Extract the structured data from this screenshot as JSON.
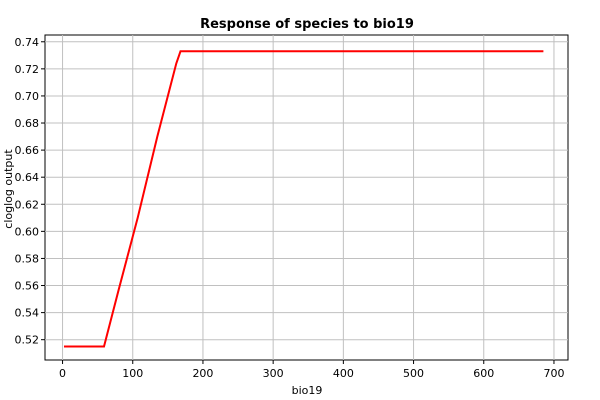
{
  "chart_data": {
    "type": "line",
    "title": "Response of species to bio19",
    "xlabel": "bio19",
    "ylabel": "cloglog output",
    "xlim": [
      -25,
      720
    ],
    "ylim": [
      0.505,
      0.745
    ],
    "xticks": [
      0,
      100,
      200,
      300,
      400,
      500,
      600,
      700
    ],
    "yticks": [
      0.52,
      0.54,
      0.56,
      0.58,
      0.6,
      0.62,
      0.64,
      0.66,
      0.68,
      0.7,
      0.72,
      0.74
    ],
    "grid": true,
    "series": [
      {
        "color": "#ff0000",
        "x": [
          2,
          59,
          80,
          107,
          135,
          162,
          168,
          685
        ],
        "y": [
          0.515,
          0.515,
          0.557,
          0.61,
          0.67,
          0.724,
          0.733,
          0.733
        ]
      }
    ]
  }
}
